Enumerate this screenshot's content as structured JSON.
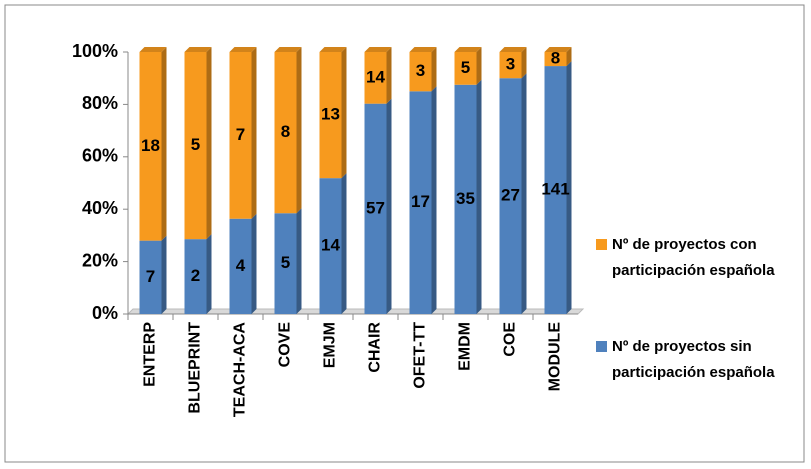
{
  "chart_data": {
    "type": "bar",
    "stacking": "percent",
    "categories": [
      "ENTERP",
      "BLUEPRINT",
      "TEACH-ACA",
      "COVE",
      "EMJM",
      "CHAIR",
      "OFET-TT",
      "EMDM",
      "COE",
      "MODULE"
    ],
    "series": [
      {
        "name": "Nº de proyectos sin participación española",
        "color": "#4f81bd",
        "values": [
          7,
          2,
          4,
          5,
          14,
          57,
          17,
          35,
          27,
          141
        ]
      },
      {
        "name": "Nº de proyectos con participación española",
        "color": "#f79a1e",
        "values": [
          18,
          5,
          7,
          8,
          13,
          14,
          3,
          5,
          3,
          8
        ]
      }
    ],
    "ylim": [
      0,
      100
    ],
    "yticks": [
      {
        "value": 0,
        "label": "0%"
      },
      {
        "value": 20,
        "label": "20%"
      },
      {
        "value": 40,
        "label": "40%"
      },
      {
        "value": 60,
        "label": "60%"
      },
      {
        "value": 80,
        "label": "80%"
      },
      {
        "value": 100,
        "label": "100%"
      }
    ],
    "legend": "right",
    "grid": false
  }
}
